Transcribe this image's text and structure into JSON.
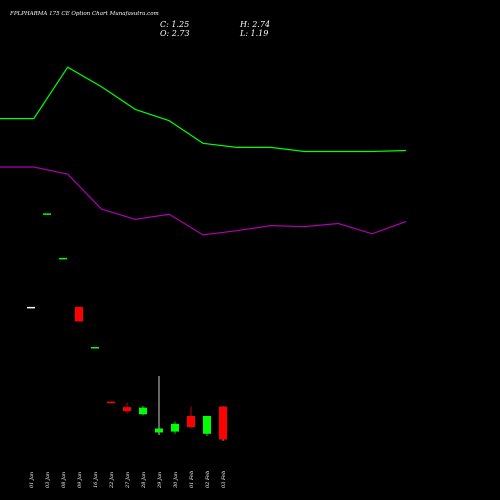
{
  "chart_data": {
    "type": "candlestick",
    "title": "FPLPHARMA 175 CE Option Chart Munafasutra.com",
    "ohlc": {
      "open_label": "O: 2.73",
      "high_label": "H: 2.74",
      "close_label": "C: 1.25",
      "low_label": "L: 1.19"
    },
    "categories": [
      "01 Jan",
      "03 Jan",
      "08 Jan",
      "09 Jan",
      "16 Jan",
      "22 Jan",
      "27 Jan",
      "28 Jan",
      "29 Jan",
      "30 Jan",
      "01 Feb",
      "02 Feb",
      "03 Feb"
    ],
    "candles": [
      {
        "open": 7.2,
        "high": 7.2,
        "low": 7.2,
        "close": 7.2
      },
      {
        "open": 11.4,
        "high": 11.4,
        "low": 11.4,
        "close": 11.4
      },
      {
        "open": 9.4,
        "high": 9.4,
        "low": 9.4,
        "close": 9.4
      },
      {
        "open": 7.2,
        "high": 7.2,
        "low": 6.55,
        "close": 6.55
      },
      {
        "open": 5.4,
        "high": 5.4,
        "low": 5.4,
        "close": 5.4
      },
      {
        "open": 2.95,
        "high": 2.95,
        "low": 2.88,
        "close": 2.88
      },
      {
        "open": 2.7,
        "high": 2.9,
        "low": 2.42,
        "close": 2.52
      },
      {
        "open": 2.38,
        "high": 2.75,
        "low": 2.32,
        "close": 2.68
      },
      {
        "open": 1.56,
        "high": 4.1,
        "low": 1.45,
        "close": 1.74
      },
      {
        "open": 1.6,
        "high": 2.05,
        "low": 1.5,
        "close": 1.95
      },
      {
        "open": 2.3,
        "high": 2.72,
        "low": 1.75,
        "close": 1.8
      },
      {
        "open": 1.5,
        "high": 2.22,
        "low": 1.4,
        "close": 2.3
      },
      {
        "open": 2.73,
        "high": 2.74,
        "low": 1.19,
        "close": 1.25
      }
    ],
    "series": [
      {
        "color": "#00ff00",
        "values": [
          41.8,
          41.8,
          46.8,
          44.9,
          42.7,
          41.6,
          39.4,
          39.0,
          39.0,
          38.6,
          38.6,
          38.6,
          38.7
        ]
      },
      {
        "color": "#b000b0",
        "values": [
          37.1,
          37.1,
          36.4,
          33.0,
          32.0,
          32.5,
          30.5,
          30.9,
          31.4,
          31.3,
          31.6,
          30.6,
          31.8
        ]
      }
    ],
    "colors": {
      "up": "#00ff00",
      "down": "#ff0000",
      "background": "#000000",
      "text": "#ffffff"
    },
    "grid": false,
    "legend": "none"
  }
}
